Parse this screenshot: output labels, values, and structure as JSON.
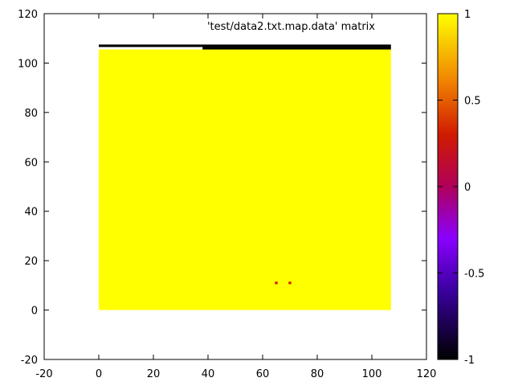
{
  "chart_data": {
    "type": "heatmap",
    "title": "",
    "legend": {
      "label": "'test/data2.txt.map.data' matrix",
      "placement": "top-right"
    },
    "xlabel": "",
    "ylabel": "",
    "xlim": [
      -20,
      120
    ],
    "ylim": [
      -20,
      120
    ],
    "x_ticks": [
      "-20",
      "0",
      "20",
      "40",
      "60",
      "80",
      "100",
      "120"
    ],
    "y_ticks": [
      "-20",
      "0",
      "20",
      "40",
      "60",
      "80",
      "100",
      "120"
    ],
    "grid": false,
    "colorbar": {
      "range": [
        -1,
        1
      ],
      "ticks": [
        "-1",
        "-0.5",
        "0",
        "0.5",
        "1"
      ],
      "palette": "black-blue-purple-red-orange-yellow"
    },
    "matrix": {
      "x_range": [
        0,
        107
      ],
      "y_range": [
        0,
        107
      ],
      "fill_value": 1,
      "cells": [
        {
          "x": [
            0,
            107
          ],
          "y": [
            106.5,
            107.5
          ],
          "value": -1
        },
        {
          "x": [
            38,
            107
          ],
          "y": [
            105.5,
            106.5
          ],
          "value": -1
        },
        {
          "x": [
            64.5,
            65.5
          ],
          "y": [
            10.5,
            11.5
          ],
          "value": 0.3
        },
        {
          "x": [
            69.5,
            70.5
          ],
          "y": [
            10.5,
            11.5
          ],
          "value": 0.3
        }
      ]
    },
    "colors": {
      "high": "#ffff00",
      "low": "#000000",
      "mid": "#c02000"
    }
  }
}
